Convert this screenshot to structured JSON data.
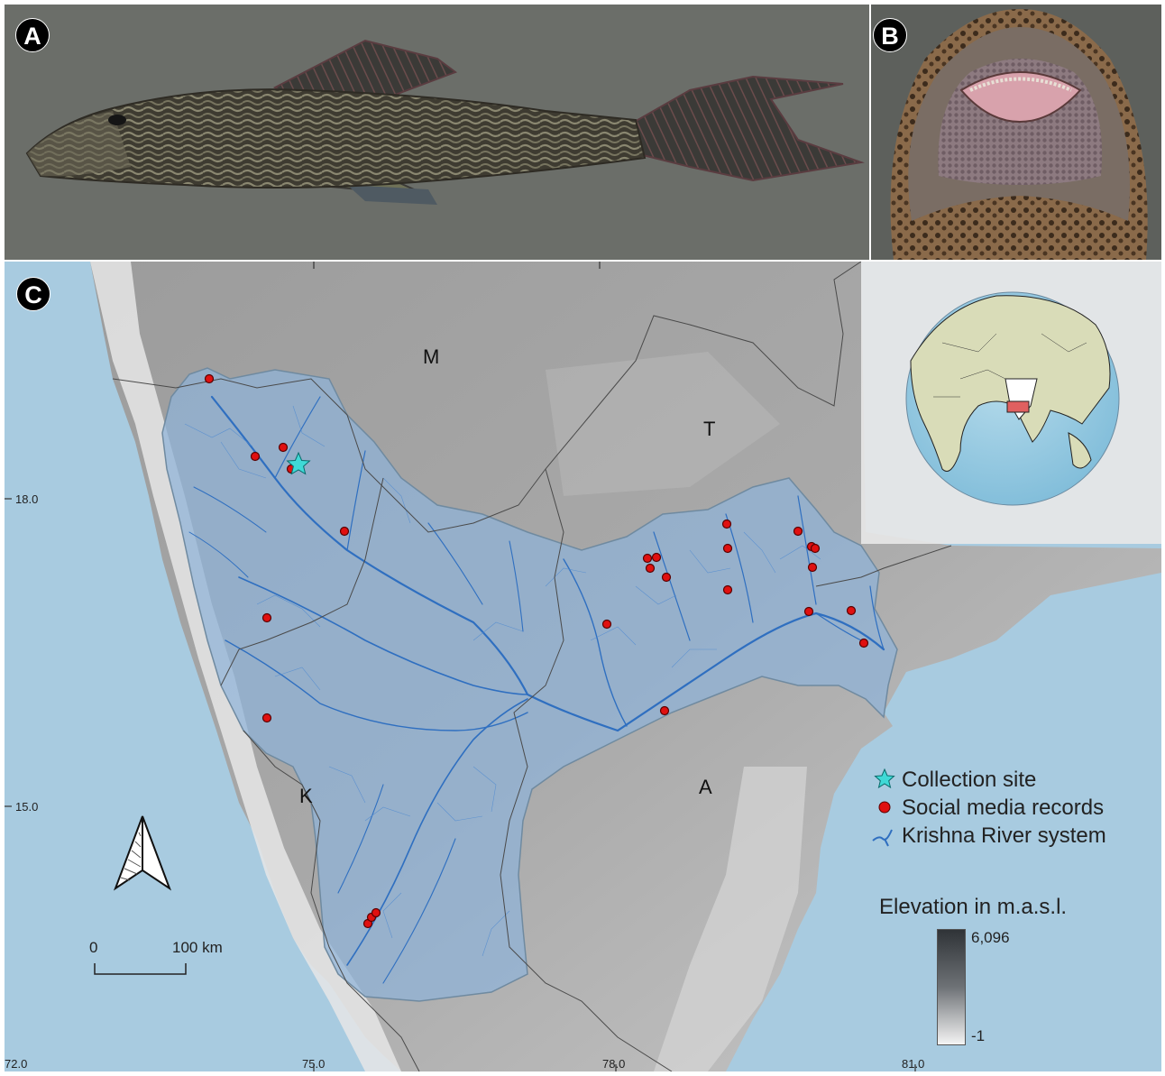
{
  "panels": {
    "a_label": "A",
    "b_label": "B",
    "c_label": "C"
  },
  "map": {
    "state_labels": {
      "m": "M",
      "t": "T",
      "k": "K",
      "a": "A"
    },
    "legend": {
      "collection_site": "Collection site",
      "social_media": "Social media records",
      "river": "Krishna River system"
    },
    "elevation": {
      "title": "Elevation in m.a.s.l.",
      "max": "6,096",
      "min": "-1"
    },
    "scale": {
      "start": "0",
      "end": "100 km"
    },
    "axes": {
      "lat": [
        "18.0",
        "15.0"
      ],
      "lon": [
        "72.0",
        "75.0",
        "78.0",
        "81.0"
      ]
    },
    "colors": {
      "basin": "#8fb3d8",
      "river": "#2f6fc0",
      "record": "#e01010",
      "site": "#3fd9d6",
      "sea": "#a8cbe0",
      "land_globe": "#d9dcb8"
    },
    "north_arrow_icon": "north-arrow-icon"
  }
}
